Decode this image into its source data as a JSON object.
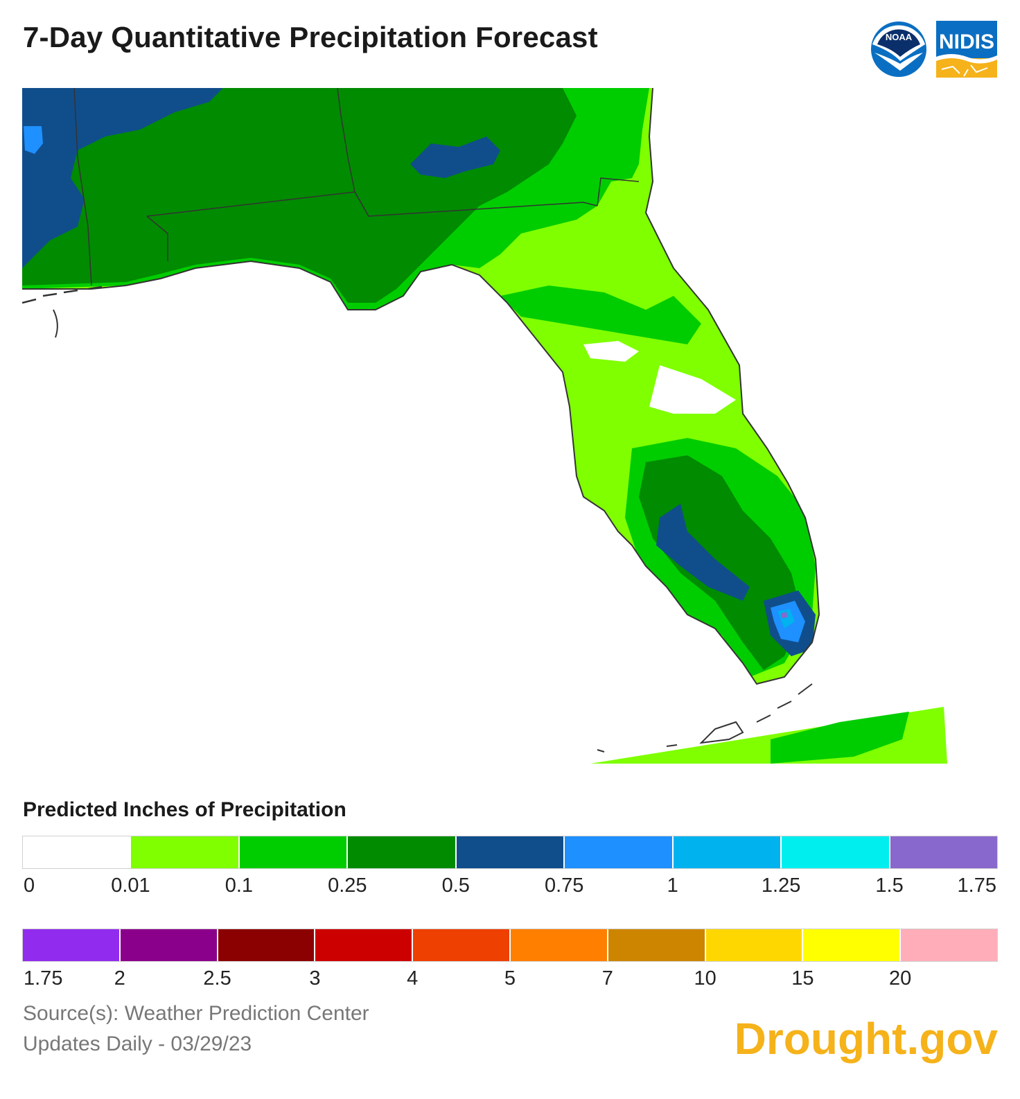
{
  "header": {
    "title": "7-Day Quantitative Precipitation Forecast",
    "logos": {
      "noaa_text": "NOAA",
      "nidis_text": "NIDIS"
    }
  },
  "legend": {
    "title": "Predicted Inches of Precipitation",
    "row1": {
      "colors": [
        "#ffffff",
        "#7fff00",
        "#00cd00",
        "#008b00",
        "#104e8b",
        "#1e90ff",
        "#00b2ee",
        "#00eeee",
        "#8968cd"
      ],
      "ticks": [
        "0",
        "0.01",
        "0.1",
        "0.25",
        "0.5",
        "0.75",
        "1",
        "1.25",
        "1.5",
        "1.75"
      ]
    },
    "row2": {
      "colors": [
        "#912cee",
        "#8b008b",
        "#8b0000",
        "#cd0000",
        "#ee4000",
        "#ff7f00",
        "#cd8500",
        "#ffd700",
        "#ffff00",
        "#ffaeb9"
      ],
      "ticks": [
        "1.75",
        "2",
        "2.5",
        "3",
        "4",
        "5",
        "7",
        "10",
        "15",
        "20"
      ]
    }
  },
  "footer": {
    "source": "Source(s): Weather Prediction Center",
    "updated": "Updates Daily - 03/29/23",
    "brand": "Drought.gov"
  },
  "map": {
    "region": "Florida",
    "palette": {
      "light_green": "#7fff00",
      "green": "#00cd00",
      "dark_green": "#008b00",
      "navy": "#104e8b",
      "blue": "#1e90ff",
      "light_blue": "#00b2ee",
      "purple": "#8968cd",
      "outline": "#333333"
    }
  }
}
